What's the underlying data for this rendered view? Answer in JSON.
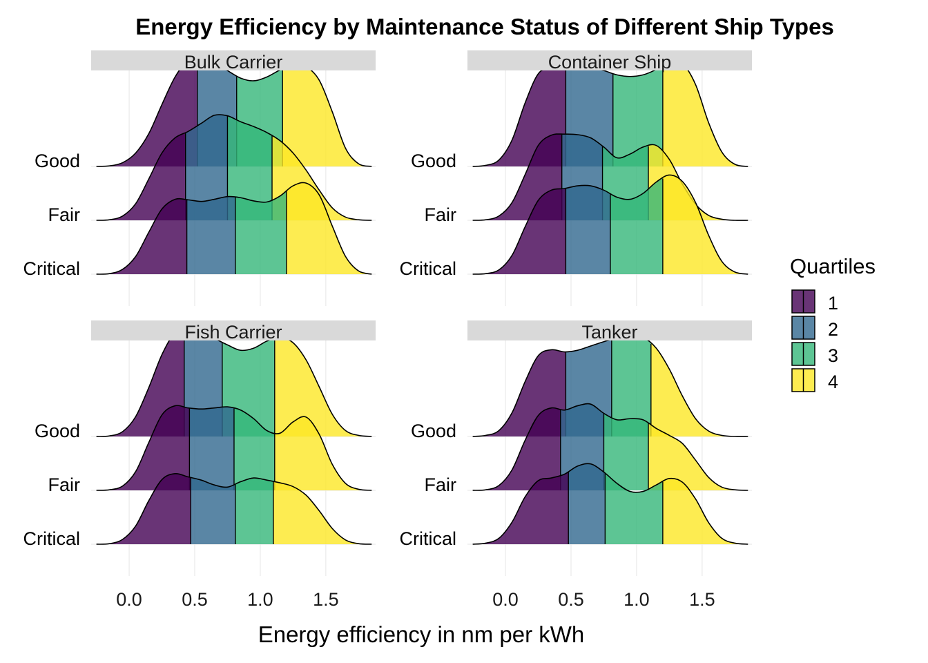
{
  "chart_data": {
    "type": "ridgeline",
    "title": "Energy Efficiency by Maintenance Status of Different Ship Types",
    "xlabel": "Energy efficiency in nm per kWh",
    "ylabel": "",
    "xlim": [
      -0.29,
      1.88
    ],
    "x_ticks": [
      0.0,
      0.5,
      1.0,
      1.5
    ],
    "x_tick_labels": [
      "0.0",
      "0.5",
      "1.0",
      "1.5"
    ],
    "row_labels": [
      "Good",
      "Fair",
      "Critical"
    ],
    "grid": true,
    "legend": {
      "title": "Quartiles",
      "position": "right",
      "items": [
        "1",
        "2",
        "3",
        "4"
      ],
      "colors": [
        "#440154",
        "#31688E",
        "#35B779",
        "#FDE725"
      ]
    },
    "fill_alpha": 0.8,
    "density_x": [
      -0.25,
      -0.15,
      -0.05,
      0.05,
      0.15,
      0.25,
      0.35,
      0.45,
      0.55,
      0.65,
      0.75,
      0.85,
      0.95,
      1.05,
      1.15,
      1.25,
      1.35,
      1.45,
      1.55,
      1.65,
      1.75,
      1.85
    ],
    "panels": [
      {
        "name": "Bulk Carrier",
        "ridges": [
          {
            "label": "Good",
            "quartiles": [
              0.52,
              0.82,
              1.17
            ],
            "density": [
              0,
              0.005,
              0.035,
              0.125,
              0.305,
              0.575,
              0.83,
              0.985,
              1.0,
              0.965,
              0.89,
              0.82,
              0.795,
              0.83,
              0.895,
              0.945,
              0.925,
              0.8,
              0.505,
              0.17,
              0.025,
              0
            ]
          },
          {
            "label": "Fair",
            "quartiles": [
              0.43,
              0.75,
              1.09
            ],
            "density": [
              0,
              0.005,
              0.04,
              0.155,
              0.385,
              0.625,
              0.765,
              0.825,
              0.9,
              0.975,
              0.97,
              0.915,
              0.87,
              0.815,
              0.74,
              0.625,
              0.465,
              0.28,
              0.115,
              0.03,
              0.005,
              0
            ]
          },
          {
            "label": "Critical",
            "quartiles": [
              0.44,
              0.81,
              1.2
            ],
            "density": [
              0,
              0.005,
              0.045,
              0.165,
              0.39,
              0.605,
              0.695,
              0.69,
              0.675,
              0.695,
              0.72,
              0.71,
              0.68,
              0.67,
              0.725,
              0.82,
              0.845,
              0.735,
              0.445,
              0.165,
              0.03,
              0
            ]
          }
        ]
      },
      {
        "name": "Container Ship",
        "ridges": [
          {
            "label": "Good",
            "quartiles": [
              0.46,
              0.82,
              1.2
            ],
            "density": [
              0,
              0.01,
              0.06,
              0.245,
              0.59,
              0.86,
              0.915,
              0.9,
              0.905,
              0.915,
              0.89,
              0.85,
              0.835,
              0.85,
              0.9,
              0.975,
              0.955,
              0.76,
              0.405,
              0.135,
              0.02,
              0
            ]
          },
          {
            "label": "Fair",
            "quartiles": [
              0.43,
              0.74,
              1.09
            ],
            "density": [
              0,
              0.005,
              0.04,
              0.165,
              0.425,
              0.695,
              0.79,
              0.8,
              0.795,
              0.765,
              0.68,
              0.58,
              0.615,
              0.68,
              0.695,
              0.565,
              0.335,
              0.15,
              0.045,
              0.01,
              0,
              0
            ]
          },
          {
            "label": "Critical",
            "quartiles": [
              0.46,
              0.8,
              1.2
            ],
            "density": [
              0,
              0.005,
              0.04,
              0.175,
              0.44,
              0.685,
              0.78,
              0.795,
              0.82,
              0.82,
              0.78,
              0.715,
              0.695,
              0.75,
              0.855,
              0.92,
              0.86,
              0.665,
              0.36,
              0.12,
              0.02,
              0
            ]
          }
        ]
      },
      {
        "name": "Fish Carrier",
        "ridges": [
          {
            "label": "Good",
            "quartiles": [
              0.42,
              0.71,
              1.11
            ],
            "density": [
              0,
              0.005,
              0.045,
              0.185,
              0.455,
              0.76,
              0.965,
              1.0,
              0.965,
              0.91,
              0.85,
              0.8,
              0.82,
              0.885,
              0.92,
              0.87,
              0.71,
              0.46,
              0.205,
              0.055,
              0.01,
              0
            ]
          },
          {
            "label": "Fair",
            "quartiles": [
              0.46,
              0.8,
              1.11
            ],
            "density": [
              0,
              0.005,
              0.04,
              0.175,
              0.445,
              0.7,
              0.785,
              0.765,
              0.755,
              0.765,
              0.775,
              0.745,
              0.665,
              0.555,
              0.53,
              0.635,
              0.68,
              0.52,
              0.24,
              0.065,
              0.01,
              0
            ]
          },
          {
            "label": "Critical",
            "quartiles": [
              0.47,
              0.81,
              1.1
            ],
            "density": [
              0,
              0.005,
              0.045,
              0.17,
              0.405,
              0.6,
              0.655,
              0.625,
              0.595,
              0.55,
              0.53,
              0.58,
              0.615,
              0.595,
              0.57,
              0.535,
              0.455,
              0.31,
              0.145,
              0.04,
              0.005,
              0
            ]
          }
        ]
      },
      {
        "name": "Tanker",
        "ridges": [
          {
            "label": "Good",
            "quartiles": [
              0.46,
              0.81,
              1.11
            ],
            "density": [
              0,
              0.01,
              0.055,
              0.22,
              0.51,
              0.75,
              0.805,
              0.785,
              0.8,
              0.84,
              0.88,
              0.915,
              0.935,
              0.92,
              0.82,
              0.625,
              0.375,
              0.165,
              0.05,
              0.01,
              0,
              0
            ]
          },
          {
            "label": "Fair",
            "quartiles": [
              0.42,
              0.75,
              1.09
            ],
            "density": [
              0,
              0.005,
              0.045,
              0.19,
              0.465,
              0.695,
              0.765,
              0.745,
              0.785,
              0.8,
              0.715,
              0.655,
              0.665,
              0.655,
              0.575,
              0.51,
              0.435,
              0.28,
              0.12,
              0.03,
              0.005,
              0
            ]
          },
          {
            "label": "Critical",
            "quartiles": [
              0.48,
              0.76,
              1.2
            ],
            "density": [
              0,
              0.01,
              0.055,
              0.205,
              0.44,
              0.59,
              0.615,
              0.65,
              0.725,
              0.745,
              0.67,
              0.565,
              0.49,
              0.49,
              0.55,
              0.61,
              0.575,
              0.42,
              0.2,
              0.055,
              0.01,
              0
            ]
          }
        ]
      }
    ]
  }
}
